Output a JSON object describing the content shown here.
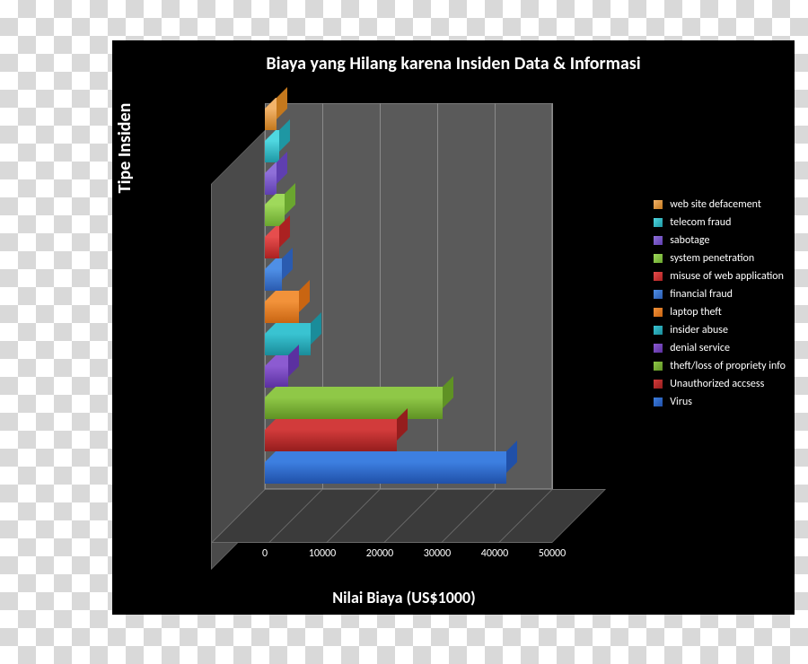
{
  "chart": {
    "type": "bar-3d-horizontal",
    "title": "Biaya yang Hilang karena Insiden Data & Informasi",
    "title_fontsize": 20,
    "title_weight": 700,
    "xlabel": "Nilai Biaya (US$1000)",
    "ylabel": "Tipe Insiden",
    "axis_label_fontsize": 18,
    "panel_bg": "#000000",
    "wall_bg": "#5a5a5a",
    "side_wall_bg": "#4a4a4a",
    "floor_bg": "#3b3b3b",
    "grid_color": "#8a8a8a",
    "text_color": "#ffffff",
    "xlim": [
      0,
      50000
    ],
    "xtick_step": 10000,
    "xticks": [
      "0",
      "10000",
      "20000",
      "30000",
      "40000",
      "50000"
    ],
    "legend_fontsize": 12,
    "series": [
      {
        "label": "web site defacement",
        "value": 2000,
        "light": "#f2b36a",
        "dark": "#c4781d"
      },
      {
        "label": "telecom fraud",
        "value": 2500,
        "light": "#4fd7e0",
        "dark": "#1e97a3"
      },
      {
        "label": "sabotage",
        "value": 2000,
        "light": "#8f6fd9",
        "dark": "#5f3fb0"
      },
      {
        "label": "system penetration",
        "value": 3500,
        "light": "#9fd95b",
        "dark": "#6aa62f"
      },
      {
        "label": "misuse of web application",
        "value": 2500,
        "light": "#e64d4d",
        "dark": "#ab2121"
      },
      {
        "label": "financial fraud",
        "value": 3000,
        "light": "#4f8fe6",
        "dark": "#2a5bb0"
      },
      {
        "label": "laptop theft",
        "value": 6000,
        "light": "#f2923a",
        "dark": "#c96512"
      },
      {
        "label": "insider abuse",
        "value": 8000,
        "light": "#39c3d1",
        "dark": "#1a8c9a"
      },
      {
        "label": "denial service",
        "value": 4000,
        "light": "#8c5bd1",
        "dark": "#5b30a0"
      },
      {
        "label": "theft/loss of propriety info",
        "value": 31000,
        "light": "#8fc847",
        "dark": "#5f9224"
      },
      {
        "label": "Unauthorized accsess",
        "value": 23000,
        "light": "#d23b3b",
        "dark": "#951d1d"
      },
      {
        "label": "Virus",
        "value": 42000,
        "light": "#3d7fe0",
        "dark": "#2050a8"
      }
    ]
  }
}
